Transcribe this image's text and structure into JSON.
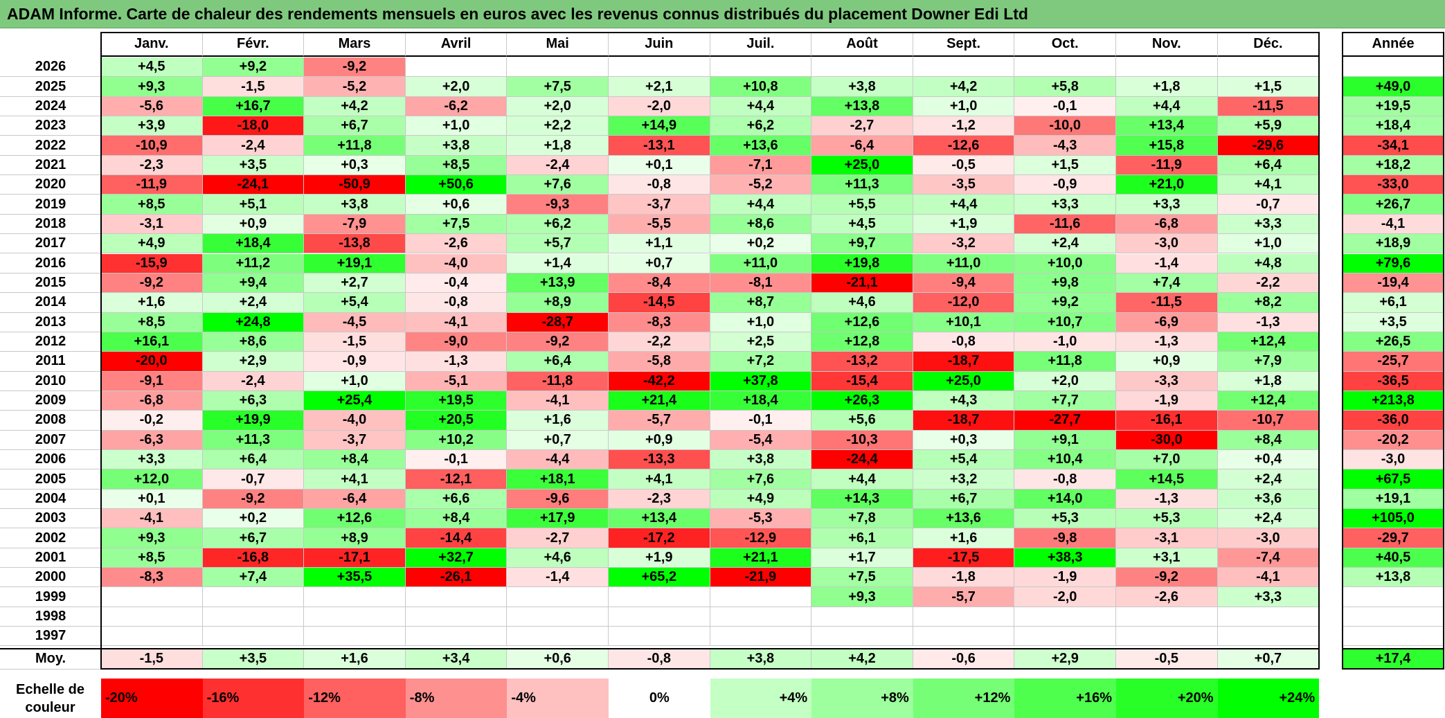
{
  "title": "ADAM Informe. Carte de chaleur des rendements mensuels en euros avec les revenus connus distribués du placement Downer Edi Ltd",
  "chart_data": {
    "type": "heatmap",
    "columns": [
      "Janv.",
      "Févr.",
      "Mars",
      "Avril",
      "Mai",
      "Juin",
      "Juil.",
      "Août",
      "Sept.",
      "Oct.",
      "Nov.",
      "Déc."
    ],
    "year_label": "Année",
    "avg_label": "Moy.",
    "rows": [
      {
        "year": "2026",
        "months": [
          "+4,5",
          "+9,2",
          "-9,2",
          "",
          "",
          "",
          "",
          "",
          "",
          "",
          "",
          ""
        ],
        "annual": ""
      },
      {
        "year": "2025",
        "months": [
          "+9,3",
          "-1,5",
          "-5,2",
          "+2,0",
          "+7,5",
          "+2,1",
          "+10,8",
          "+3,8",
          "+4,2",
          "+5,8",
          "+1,8",
          "+1,5"
        ],
        "annual": "+49,0"
      },
      {
        "year": "2024",
        "months": [
          "-5,6",
          "+16,7",
          "+4,2",
          "-6,2",
          "+2,0",
          "-2,0",
          "+4,4",
          "+13,8",
          "+1,0",
          "-0,1",
          "+4,4",
          "-11,5"
        ],
        "annual": "+19,5"
      },
      {
        "year": "2023",
        "months": [
          "+3,9",
          "-18,0",
          "+6,7",
          "+1,0",
          "+2,2",
          "+14,9",
          "+6,2",
          "-2,7",
          "-1,2",
          "-10,0",
          "+13,4",
          "+5,9"
        ],
        "annual": "+18,4"
      },
      {
        "year": "2022",
        "months": [
          "-10,9",
          "-2,4",
          "+11,8",
          "+3,8",
          "+1,8",
          "-13,1",
          "+13,6",
          "-6,4",
          "-12,6",
          "-4,3",
          "+15,8",
          "-29,6"
        ],
        "annual": "-34,1"
      },
      {
        "year": "2021",
        "months": [
          "-2,3",
          "+3,5",
          "+0,3",
          "+8,5",
          "-2,4",
          "+0,1",
          "-7,1",
          "+25,0",
          "-0,5",
          "+1,5",
          "-11,9",
          "+6,4"
        ],
        "annual": "+18,2"
      },
      {
        "year": "2020",
        "months": [
          "-11,9",
          "-24,1",
          "-50,9",
          "+50,6",
          "+7,6",
          "-0,8",
          "-5,2",
          "+11,3",
          "-3,5",
          "-0,9",
          "+21,0",
          "+4,1"
        ],
        "annual": "-33,0"
      },
      {
        "year": "2019",
        "months": [
          "+8,5",
          "+5,1",
          "+3,8",
          "+0,6",
          "-9,3",
          "-3,7",
          "+4,4",
          "+5,5",
          "+4,4",
          "+3,3",
          "+3,3",
          "-0,7"
        ],
        "annual": "+26,7"
      },
      {
        "year": "2018",
        "months": [
          "-3,1",
          "+0,9",
          "-7,9",
          "+7,5",
          "+6,2",
          "-5,5",
          "+8,6",
          "+4,5",
          "+1,9",
          "-11,6",
          "-6,8",
          "+3,3"
        ],
        "annual": "-4,1"
      },
      {
        "year": "2017",
        "months": [
          "+4,9",
          "+18,4",
          "-13,8",
          "-2,6",
          "+5,7",
          "+1,1",
          "+0,2",
          "+9,7",
          "-3,2",
          "+2,4",
          "-3,0",
          "+1,0"
        ],
        "annual": "+18,9"
      },
      {
        "year": "2016",
        "months": [
          "-15,9",
          "+11,2",
          "+19,1",
          "-4,0",
          "+1,4",
          "+0,7",
          "+11,0",
          "+19,8",
          "+11,0",
          "+10,0",
          "-1,4",
          "+4,8"
        ],
        "annual": "+79,6"
      },
      {
        "year": "2015",
        "months": [
          "-9,2",
          "+9,4",
          "+2,7",
          "-0,4",
          "+13,9",
          "-8,4",
          "-8,1",
          "-21,1",
          "-9,4",
          "+9,8",
          "+7,4",
          "-2,2"
        ],
        "annual": "-19,4"
      },
      {
        "year": "2014",
        "months": [
          "+1,6",
          "+2,4",
          "+5,4",
          "-0,8",
          "+8,9",
          "-14,5",
          "+8,7",
          "+4,6",
          "-12,0",
          "+9,2",
          "-11,5",
          "+8,2"
        ],
        "annual": "+6,1"
      },
      {
        "year": "2013",
        "months": [
          "+8,5",
          "+24,8",
          "-4,5",
          "-4,1",
          "-28,7",
          "-8,3",
          "+1,0",
          "+12,6",
          "+10,1",
          "+10,7",
          "-6,9",
          "-1,3"
        ],
        "annual": "+3,5"
      },
      {
        "year": "2012",
        "months": [
          "+16,1",
          "+8,6",
          "-1,5",
          "-9,0",
          "-9,2",
          "-2,2",
          "+2,5",
          "+12,8",
          "-0,8",
          "-1,0",
          "-1,3",
          "+12,4"
        ],
        "annual": "+26,5"
      },
      {
        "year": "2011",
        "months": [
          "-20,0",
          "+2,9",
          "-0,9",
          "-1,3",
          "+6,4",
          "-5,8",
          "+7,2",
          "-13,2",
          "-18,7",
          "+11,8",
          "+0,9",
          "+7,9"
        ],
        "annual": "-25,7"
      },
      {
        "year": "2010",
        "months": [
          "-9,1",
          "-2,4",
          "+1,0",
          "-5,1",
          "-11,8",
          "-42,2",
          "+37,8",
          "-15,4",
          "+25,0",
          "+2,0",
          "-3,3",
          "+1,8"
        ],
        "annual": "-36,5"
      },
      {
        "year": "2009",
        "months": [
          "-6,8",
          "+6,3",
          "+25,4",
          "+19,5",
          "-4,1",
          "+21,4",
          "+18,4",
          "+26,3",
          "+4,3",
          "+7,7",
          "-1,9",
          "+12,4"
        ],
        "annual": "+213,8"
      },
      {
        "year": "2008",
        "months": [
          "-0,2",
          "+19,9",
          "-4,0",
          "+20,5",
          "+1,6",
          "-5,7",
          "-0,1",
          "+5,6",
          "-18,7",
          "-27,7",
          "-16,1",
          "-10,7"
        ],
        "annual": "-36,0"
      },
      {
        "year": "2007",
        "months": [
          "-6,3",
          "+11,3",
          "-3,7",
          "+10,2",
          "+0,7",
          "+0,9",
          "-5,4",
          "-10,3",
          "+0,3",
          "+9,1",
          "-30,0",
          "+8,4"
        ],
        "annual": "-20,2"
      },
      {
        "year": "2006",
        "months": [
          "+3,3",
          "+6,4",
          "+8,4",
          "-0,1",
          "-4,4",
          "-13,3",
          "+3,8",
          "-24,4",
          "+5,4",
          "+10,4",
          "+7,0",
          "+0,4"
        ],
        "annual": "-3,0"
      },
      {
        "year": "2005",
        "months": [
          "+12,0",
          "-0,7",
          "+4,1",
          "-12,1",
          "+18,1",
          "+4,1",
          "+7,6",
          "+4,4",
          "+3,2",
          "-0,8",
          "+14,5",
          "+2,4"
        ],
        "annual": "+67,5"
      },
      {
        "year": "2004",
        "months": [
          "+0,1",
          "-9,2",
          "-6,4",
          "+6,6",
          "-9,6",
          "-2,3",
          "+4,9",
          "+14,3",
          "+6,7",
          "+14,0",
          "-1,3",
          "+3,6"
        ],
        "annual": "+19,1"
      },
      {
        "year": "2003",
        "months": [
          "-4,1",
          "+0,2",
          "+12,6",
          "+8,4",
          "+17,9",
          "+13,4",
          "-5,3",
          "+7,8",
          "+13,6",
          "+5,3",
          "+5,3",
          "+2,4"
        ],
        "annual": "+105,0"
      },
      {
        "year": "2002",
        "months": [
          "+9,3",
          "+6,7",
          "+8,9",
          "-14,4",
          "-2,7",
          "-17,2",
          "-12,9",
          "+6,1",
          "+1,6",
          "-9,8",
          "-3,1",
          "-3,0"
        ],
        "annual": "-29,7"
      },
      {
        "year": "2001",
        "months": [
          "+8,5",
          "-16,8",
          "-17,1",
          "+32,7",
          "+4,6",
          "+1,9",
          "+21,1",
          "+1,7",
          "-17,5",
          "+38,3",
          "+3,1",
          "-7,4"
        ],
        "annual": "+40,5"
      },
      {
        "year": "2000",
        "months": [
          "-8,3",
          "+7,4",
          "+35,5",
          "-26,1",
          "-1,4",
          "+65,2",
          "-21,9",
          "+7,5",
          "-1,8",
          "-1,9",
          "-9,2",
          "-4,1"
        ],
        "annual": "+13,8"
      },
      {
        "year": "1999",
        "months": [
          "",
          "",
          "",
          "",
          "",
          "",
          "",
          "+9,3",
          "-5,7",
          "-2,0",
          "-2,6",
          "+3,3"
        ],
        "annual": ""
      },
      {
        "year": "1998",
        "months": [
          "",
          "",
          "",
          "",
          "",
          "",
          "",
          "",
          "",
          "",
          "",
          ""
        ],
        "annual": ""
      },
      {
        "year": "1997",
        "months": [
          "",
          "",
          "",
          "",
          "",
          "",
          "",
          "",
          "",
          "",
          "",
          ""
        ],
        "annual": ""
      }
    ],
    "averages": {
      "months": [
        "-1,5",
        "+3,5",
        "+1,6",
        "+3,4",
        "+0,6",
        "-0,8",
        "+3,8",
        "+4,2",
        "-0,6",
        "+2,9",
        "-0,5",
        "+0,7"
      ],
      "annual": "+17,4"
    },
    "color_scale": {
      "label": "Echelle de couleur",
      "stops": [
        "-20%",
        "-16%",
        "-12%",
        "-8%",
        "-4%",
        "0%",
        "+4%",
        "+8%",
        "+12%",
        "+16%",
        "+20%",
        "+24%"
      ],
      "negative_color": "#ff0000",
      "positive_color": "#00ff00",
      "neutral_color": "#ffffff"
    }
  }
}
